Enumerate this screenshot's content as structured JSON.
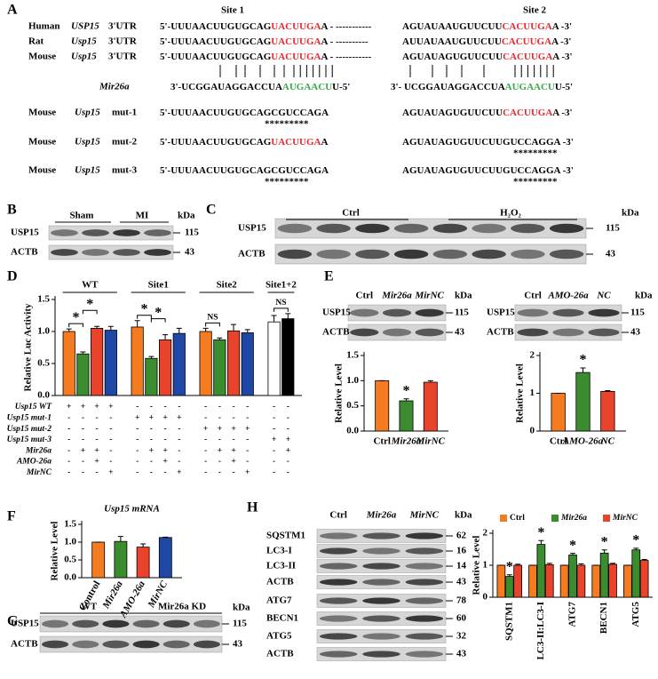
{
  "panel_labels": [
    "A",
    "B",
    "C",
    "D",
    "E",
    "F",
    "G",
    "H"
  ],
  "panel_a": {
    "site_labels": [
      "Site 1",
      "Site 2"
    ],
    "rows": [
      {
        "species": "Human",
        "gene": "USP15",
        "region": "3'UTR",
        "left": [
          {
            "text": "5'-UUUAACUUGUGCAG",
            "color": "#000000"
          },
          {
            "text": "UACUUGA",
            "color": "#e8262b"
          },
          {
            "text": "A - -----------",
            "color": "#000000"
          }
        ],
        "right": [
          {
            "text": "AGUAUAAUGUUCUU",
            "color": "#000000"
          },
          {
            "text": "CACUUGA",
            "color": "#e8262b"
          },
          {
            "text": "A -3'",
            "color": "#000000"
          }
        ]
      },
      {
        "species": "Rat",
        "gene": "Usp15",
        "region": "3'UTR",
        "left": [
          {
            "text": "5'-UUUAACUUGUGCAG",
            "color": "#000000"
          },
          {
            "text": "UACUUGA",
            "color": "#e8262b"
          },
          {
            "text": "A - ----------",
            "color": "#000000"
          }
        ],
        "right": [
          {
            "text": "AUUAUAAUGUUCUU",
            "color": "#000000"
          },
          {
            "text": "CACUUGA",
            "color": "#e8262b"
          },
          {
            "text": "A -3'",
            "color": "#000000"
          }
        ]
      },
      {
        "species": "Mouse",
        "gene": "Usp15",
        "region": "3'UTR",
        "left": [
          {
            "text": "5'-UUUAACUUGUGCAG",
            "color": "#000000"
          },
          {
            "text": "UACUUGA",
            "color": "#e8262b"
          },
          {
            "text": "A - -----------",
            "color": "#000000"
          }
        ],
        "right": [
          {
            "text": "AGUAUAGUGUUCUU",
            "color": "#000000"
          },
          {
            "text": "CACUUGA",
            "color": "#e8262b"
          },
          {
            "text": "A -3'",
            "color": "#000000"
          }
        ]
      }
    ],
    "mirna": {
      "name": "Mir26a",
      "left": [
        {
          "text": "3'-UCGGAUAGGACCUA",
          "color": "#000000"
        },
        {
          "text": "AUGAACU",
          "color": "#3aa845"
        },
        {
          "text": "U-5'",
          "color": "#000000"
        }
      ],
      "right": [
        {
          "text": "3'- UCGGAUAGGACCUA",
          "color": "#000000"
        },
        {
          "text": "AUGAACU",
          "color": "#3aa845"
        },
        {
          "text": "U-5'",
          "color": "#000000"
        }
      ]
    },
    "mutants": [
      {
        "species": "Mouse",
        "gene": "Usp15",
        "name": "mut-1",
        "left": [
          {
            "text": "5'-UUUAACUUGUGCAGCGUCCAGA",
            "color": "#000000"
          }
        ],
        "right": [
          {
            "text": "AGUAUAGUGUUCUU",
            "color": "#000000"
          },
          {
            "text": "CACUUGA",
            "color": "#e8262b"
          },
          {
            "text": "A -3'",
            "color": "#000000"
          }
        ],
        "stars_site1": "*********"
      },
      {
        "species": "Mouse",
        "gene": "Usp15",
        "name": "mut-2",
        "left": [
          {
            "text": "5'-UUUAACUUGUGCAG",
            "color": "#000000"
          },
          {
            "text": "UACUUGA",
            "color": "#e8262b"
          },
          {
            "text": "A",
            "color": "#000000"
          }
        ],
        "right": [
          {
            "text": "AGUAUAGUGUUCUUGUCCAGGA -3'",
            "color": "#000000"
          }
        ],
        "stars_site2": "*********"
      },
      {
        "species": "Mouse",
        "gene": "Usp15",
        "name": "mut-3",
        "left": [
          {
            "text": "5'-UUUAACUUGUGCAGCGUCCAGA",
            "color": "#000000"
          }
        ],
        "right": [
          {
            "text": "AGUAUAGUGUUCUUGUCCAGGA -3'",
            "color": "#000000"
          }
        ],
        "stars_site1": "*********",
        "stars_site2": "*********"
      }
    ]
  },
  "panel_b": {
    "groups": [
      "Sham",
      "MI"
    ],
    "unit": "kDa",
    "rows": [
      {
        "label": "USP15",
        "kda": 115
      },
      {
        "label": "ACTB",
        "kda": 43
      }
    ]
  },
  "panel_c": {
    "groups": [
      "Ctrl",
      "H₂O₂"
    ],
    "unit": "kDa",
    "rows": [
      {
        "label": "USP15",
        "kda": 115
      },
      {
        "label": "ACTB",
        "kda": 43
      }
    ]
  },
  "panel_e_blots": [
    {
      "lanes": [
        "Ctrl",
        "Mir26a",
        "MirNC"
      ],
      "unit": "kDa",
      "rows": [
        {
          "label": "USP15",
          "kda": 115
        },
        {
          "label": "ACTB",
          "kda": 43
        }
      ]
    },
    {
      "lanes": [
        "Ctrl",
        "AMO-26a",
        "NC"
      ],
      "unit": "kDa",
      "rows": [
        {
          "label": "USP15",
          "kda": 115
        },
        {
          "label": "ACTB",
          "kda": 43
        }
      ]
    }
  ],
  "panel_g": {
    "groups": [
      "WT",
      "Mir26a KD"
    ],
    "unit": "kDa",
    "rows": [
      {
        "label": "USP15",
        "kda": 115
      },
      {
        "label": "ACTB",
        "kda": 43
      }
    ]
  },
  "panel_h_blot": {
    "lanes": [
      "Ctrl",
      "Mir26a",
      "MirNC"
    ],
    "unit": "kDa",
    "rows": [
      {
        "label": "SQSTM1",
        "kda": 62
      },
      {
        "label": "LC3-I",
        "kda": 16
      },
      {
        "label": "LC3-II",
        "kda": 14
      },
      {
        "label": "ACTB",
        "kda": 43
      },
      {
        "label": "ATG7",
        "kda": 78
      },
      {
        "label": "BECN1",
        "kda": 60
      },
      {
        "label": "ATG5",
        "kda": 32
      },
      {
        "label": "ACTB",
        "kda": 43
      }
    ]
  },
  "chart_data": [
    {
      "type": "bar",
      "ylabel": "Relative Luc Activity",
      "ylim": [
        0,
        1.5
      ],
      "yticks": [
        {
          "value": 0,
          "label": "0.0"
        },
        {
          "value": 0.5,
          "label": "0.5"
        },
        {
          "value": 1,
          "label": "1.0"
        },
        {
          "value": 1.5,
          "label": "1.5"
        }
      ],
      "groups": [
        {
          "label": "WT",
          "values": [
            1.0,
            0.65,
            1.05,
            1.02
          ],
          "errors": [
            0.04,
            0.03,
            0.03,
            0.06
          ],
          "colors": [
            "#f47b20",
            "#3b8c2f",
            "#e9432b",
            "#1f47a6"
          ]
        },
        {
          "label": "Site1",
          "values": [
            1.07,
            0.58,
            0.87,
            0.97
          ],
          "errors": [
            0.1,
            0.03,
            0.08,
            0.08
          ],
          "colors": [
            "#f47b20",
            "#3b8c2f",
            "#e9432b",
            "#1f47a6"
          ]
        },
        {
          "label": "Site2",
          "values": [
            1.0,
            0.87,
            1.01,
            0.98
          ],
          "errors": [
            0.05,
            0.03,
            0.1,
            0.05
          ],
          "colors": [
            "#f47b20",
            "#3b8c2f",
            "#e9432b",
            "#1f47a6"
          ]
        },
        {
          "label": "Site1+2",
          "values": [
            1.15,
            1.2
          ],
          "errors": [
            0.1,
            0.08
          ],
          "colors": [
            "#ffffff",
            "#000000"
          ]
        }
      ],
      "annotations": [
        "*",
        "*",
        "*",
        "*",
        "NS",
        "NS"
      ],
      "design": {
        "rows": [
          "Usp15 WT",
          "Usp15 mut-1",
          "Usp15 mut-2",
          "Usp15 mut-3",
          "Mir26a",
          "AMO-26a",
          "MirNC"
        ],
        "cells": [
          [
            "+",
            "+",
            "+",
            "+",
            "-",
            "-",
            "-",
            "-",
            "-",
            "-",
            "-",
            "-",
            "-",
            "-"
          ],
          [
            "-",
            "-",
            "-",
            "-",
            "+",
            "+",
            "+",
            "+",
            "-",
            "-",
            "-",
            "-",
            "-",
            "-"
          ],
          [
            "-",
            "-",
            "-",
            "-",
            "-",
            "-",
            "-",
            "-",
            "+",
            "+",
            "+",
            "+",
            "-",
            "-"
          ],
          [
            "-",
            "-",
            "-",
            "-",
            "-",
            "-",
            "-",
            "-",
            "-",
            "-",
            "-",
            "-",
            "+",
            "+"
          ],
          [
            "-",
            "+",
            "+",
            "-",
            "-",
            "+",
            "+",
            "-",
            "-",
            "+",
            "+",
            "-",
            "-",
            "+"
          ],
          [
            "-",
            "-",
            "+",
            "-",
            "-",
            "-",
            "+",
            "-",
            "-",
            "-",
            "+",
            "-",
            "-",
            "-"
          ],
          [
            "-",
            "-",
            "-",
            "+",
            "-",
            "-",
            "-",
            "+",
            "-",
            "-",
            "-",
            "+",
            "-",
            "-"
          ]
        ]
      }
    },
    {
      "type": "bar",
      "ylabel": "Relative Level",
      "categories": [
        "Ctrl",
        "Mir26a",
        "MirNC"
      ],
      "values": [
        1.0,
        0.6,
        0.97
      ],
      "errors": [
        0,
        0.04,
        0.03
      ],
      "colors": [
        "#f47b20",
        "#3b8c2f",
        "#e9432b"
      ],
      "ylim": [
        0,
        1.5
      ],
      "yticks": [
        {
          "value": 0,
          "label": "0.0"
        },
        {
          "value": 0.5,
          "label": "0.5"
        },
        {
          "value": 1,
          "label": "1.0"
        },
        {
          "value": 1.5,
          "label": "1.5"
        }
      ],
      "annotations": [
        "*"
      ]
    },
    {
      "type": "bar",
      "ylabel": "Relative Level",
      "categories": [
        "Ctrl",
        "AMO-26a",
        "NC"
      ],
      "values": [
        1.0,
        1.55,
        1.05
      ],
      "errors": [
        0,
        0.12,
        0.02
      ],
      "colors": [
        "#f47b20",
        "#3b8c2f",
        "#e9432b"
      ],
      "ylim": [
        0,
        2
      ],
      "yticks": [
        0,
        1,
        2
      ],
      "annotations": [
        "*"
      ]
    },
    {
      "type": "bar",
      "title": "Usp15 mRNA",
      "ylabel": "Relative Level",
      "categories": [
        "Control",
        "Mir26a",
        "AMO-26a",
        "MirNC"
      ],
      "values": [
        1.0,
        1.02,
        0.86,
        1.13
      ],
      "errors": [
        0,
        0.14,
        0.09,
        0.01
      ],
      "colors": [
        "#f47b20",
        "#3b8c2f",
        "#e9432b",
        "#1f47a6"
      ],
      "ylim": [
        0,
        1.5
      ],
      "yticks": [
        {
          "value": 0,
          "label": "0.0"
        },
        {
          "value": 0.5,
          "label": "0.5"
        },
        {
          "value": 1,
          "label": "1.0"
        },
        {
          "value": 1.5,
          "label": "1.5"
        }
      ]
    },
    {
      "type": "bar",
      "ylabel": "Relative Level",
      "categories": [
        "SQSTM1",
        "LC3-II:LC3-I",
        "ATG7",
        "BECN1",
        "ATG5"
      ],
      "series": [
        {
          "name": "Ctrl",
          "color": "#f47b20",
          "values": [
            1,
            1,
            1,
            1,
            1
          ],
          "errors": [
            0,
            0,
            0,
            0,
            0
          ]
        },
        {
          "name": "Mir26a",
          "color": "#3b8c2f",
          "values": [
            0.65,
            1.65,
            1.32,
            1.38,
            1.48
          ],
          "errors": [
            0.05,
            0.12,
            0.05,
            0.1,
            0.05
          ]
        },
        {
          "name": "MirNC",
          "color": "#e9432b",
          "values": [
            1.0,
            1.02,
            1.0,
            1.03,
            1.15
          ],
          "errors": [
            0.03,
            0.04,
            0.04,
            0.03,
            0.03
          ]
        }
      ],
      "ylim": [
        0,
        2
      ],
      "yticks": [
        0,
        1,
        2
      ],
      "annotations": [
        "*",
        "*",
        "*",
        "*",
        "*"
      ]
    }
  ]
}
